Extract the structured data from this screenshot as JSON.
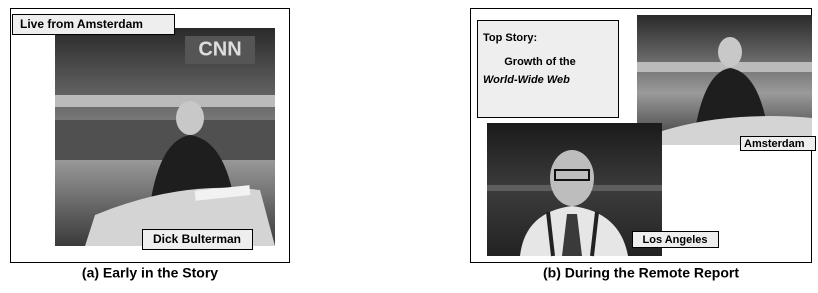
{
  "panels": [
    {
      "label": "Live from Amsterdam",
      "name_label": "Dick Bulterman",
      "caption": "(a) Early in the Story"
    },
    {
      "top_story": {
        "heading": "Top Story:",
        "line1": "Growth of the",
        "line2": "World-Wide Web"
      },
      "video_labels": [
        "Amsterdam",
        "Los Angeles"
      ],
      "caption": "(b) During the Remote Report"
    }
  ]
}
